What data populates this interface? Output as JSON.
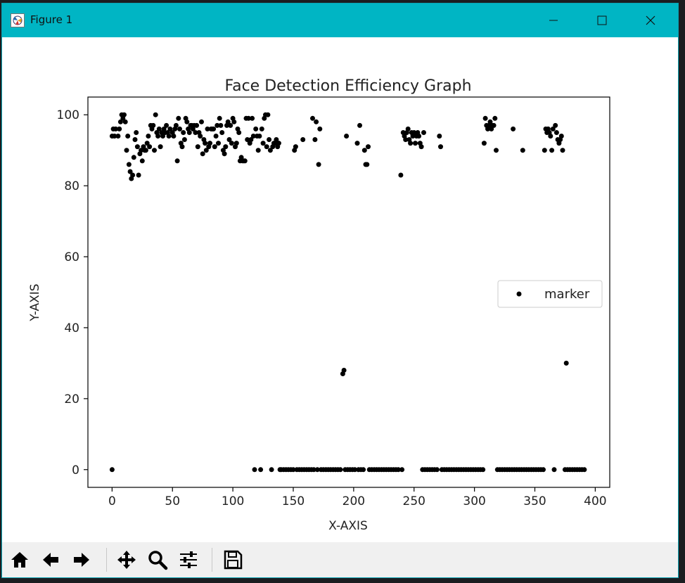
{
  "window": {
    "title": "Figure 1"
  },
  "icons": {
    "app": "matplotlib-figure-icon",
    "minimize": "minimize-icon",
    "maximize": "maximize-icon",
    "close": "close-icon"
  },
  "toolbar": {
    "buttons": [
      {
        "name": "home-button",
        "icon": "home-icon"
      },
      {
        "name": "back-button",
        "icon": "arrow-left-icon"
      },
      {
        "name": "forward-button",
        "icon": "arrow-right-icon"
      },
      {
        "name": "pan-button",
        "icon": "move-icon"
      },
      {
        "name": "zoom-button",
        "icon": "magnifier-icon"
      },
      {
        "name": "configure-subplots-button",
        "icon": "sliders-icon"
      },
      {
        "name": "save-button",
        "icon": "floppy-disk-icon"
      }
    ]
  },
  "chart_data": {
    "type": "scatter",
    "title": "Face Detection Efficiency Graph",
    "xlabel": "X-AXIS",
    "ylabel": "Y-AXIS",
    "xlim": [
      -20,
      412
    ],
    "ylim": [
      -5,
      105
    ],
    "xticks": [
      0,
      50,
      100,
      150,
      200,
      250,
      300,
      350,
      400
    ],
    "yticks": [
      0,
      20,
      40,
      60,
      80,
      100
    ],
    "grid": false,
    "legend": {
      "position": "center-right",
      "entries": [
        "marker"
      ]
    },
    "marker_color": "#000000",
    "series": [
      {
        "name": "marker",
        "points": [
          [
            0,
            0
          ],
          [
            0,
            94
          ],
          [
            1,
            96
          ],
          [
            2,
            94
          ],
          [
            3,
            96
          ],
          [
            5,
            94
          ],
          [
            6,
            96
          ],
          [
            7,
            98
          ],
          [
            8,
            100
          ],
          [
            9,
            99
          ],
          [
            10,
            100
          ],
          [
            11,
            98
          ],
          [
            12,
            90
          ],
          [
            13,
            94
          ],
          [
            14,
            86
          ],
          [
            15,
            84
          ],
          [
            16,
            82
          ],
          [
            17,
            83
          ],
          [
            18,
            88
          ],
          [
            19,
            93
          ],
          [
            20,
            95
          ],
          [
            21,
            91
          ],
          [
            22,
            83
          ],
          [
            23,
            89
          ],
          [
            24,
            90
          ],
          [
            25,
            87
          ],
          [
            26,
            91
          ],
          [
            27,
            90
          ],
          [
            28,
            90
          ],
          [
            29,
            92
          ],
          [
            30,
            94
          ],
          [
            31,
            91
          ],
          [
            32,
            97
          ],
          [
            33,
            96
          ],
          [
            34,
            97
          ],
          [
            35,
            90
          ],
          [
            36,
            100
          ],
          [
            37,
            95
          ],
          [
            38,
            94
          ],
          [
            39,
            96
          ],
          [
            40,
            91
          ],
          [
            41,
            95
          ],
          [
            42,
            94
          ],
          [
            43,
            96
          ],
          [
            44,
            95
          ],
          [
            45,
            97
          ],
          [
            46,
            95
          ],
          [
            47,
            94
          ],
          [
            48,
            96
          ],
          [
            50,
            95
          ],
          [
            51,
            94
          ],
          [
            52,
            96
          ],
          [
            53,
            97
          ],
          [
            54,
            87
          ],
          [
            55,
            99
          ],
          [
            56,
            96
          ],
          [
            57,
            92
          ],
          [
            58,
            91
          ],
          [
            59,
            95
          ],
          [
            60,
            93
          ],
          [
            61,
            99
          ],
          [
            62,
            98
          ],
          [
            63,
            96
          ],
          [
            64,
            95
          ],
          [
            65,
            97
          ],
          [
            66,
            97
          ],
          [
            67,
            96
          ],
          [
            68,
            97
          ],
          [
            69,
            95
          ],
          [
            70,
            97
          ],
          [
            71,
            91
          ],
          [
            72,
            95
          ],
          [
            73,
            94
          ],
          [
            74,
            98
          ],
          [
            75,
            89
          ],
          [
            76,
            93
          ],
          [
            77,
            92
          ],
          [
            78,
            90
          ],
          [
            79,
            96
          ],
          [
            80,
            91
          ],
          [
            81,
            92
          ],
          [
            82,
            96
          ],
          [
            83,
            96
          ],
          [
            84,
            96
          ],
          [
            85,
            91
          ],
          [
            86,
            94
          ],
          [
            87,
            97
          ],
          [
            88,
            92
          ],
          [
            89,
            99
          ],
          [
            90,
            97
          ],
          [
            91,
            95
          ],
          [
            92,
            90
          ],
          [
            93,
            89
          ],
          [
            94,
            91
          ],
          [
            95,
            97
          ],
          [
            96,
            98
          ],
          [
            97,
            93
          ],
          [
            98,
            97
          ],
          [
            99,
            92
          ],
          [
            100,
            99
          ],
          [
            101,
            98
          ],
          [
            102,
            91
          ],
          [
            103,
            92
          ],
          [
            104,
            96
          ],
          [
            105,
            95
          ],
          [
            106,
            87
          ],
          [
            107,
            88
          ],
          [
            108,
            87
          ],
          [
            109,
            87
          ],
          [
            110,
            87
          ],
          [
            111,
            99
          ],
          [
            112,
            93
          ],
          [
            113,
            99
          ],
          [
            114,
            92
          ],
          [
            115,
            93
          ],
          [
            116,
            99
          ],
          [
            117,
            94
          ],
          [
            118,
            0
          ],
          [
            119,
            96
          ],
          [
            120,
            94
          ],
          [
            121,
            90
          ],
          [
            122,
            94
          ],
          [
            123,
            0
          ],
          [
            124,
            96
          ],
          [
            125,
            92
          ],
          [
            126,
            99
          ],
          [
            127,
            100
          ],
          [
            128,
            91
          ],
          [
            129,
            100
          ],
          [
            130,
            93
          ],
          [
            131,
            90
          ],
          [
            132,
            0
          ],
          [
            133,
            91
          ],
          [
            134,
            92
          ],
          [
            135,
            92
          ],
          [
            136,
            93
          ],
          [
            137,
            91
          ],
          [
            138,
            92
          ],
          [
            139,
            0
          ],
          [
            140,
            0
          ],
          [
            142,
            0
          ],
          [
            144,
            0
          ],
          [
            146,
            0
          ],
          [
            148,
            0
          ],
          [
            150,
            0
          ],
          [
            151,
            90
          ],
          [
            152,
            91
          ],
          [
            153,
            0
          ],
          [
            155,
            0
          ],
          [
            157,
            0
          ],
          [
            158,
            93
          ],
          [
            159,
            0
          ],
          [
            161,
            0
          ],
          [
            163,
            0
          ],
          [
            165,
            0
          ],
          [
            166,
            99
          ],
          [
            167,
            0
          ],
          [
            168,
            93
          ],
          [
            169,
            98
          ],
          [
            170,
            0
          ],
          [
            171,
            86
          ],
          [
            172,
            96
          ],
          [
            173,
            0
          ],
          [
            175,
            0
          ],
          [
            177,
            0
          ],
          [
            179,
            0
          ],
          [
            181,
            0
          ],
          [
            183,
            0
          ],
          [
            185,
            0
          ],
          [
            187,
            0
          ],
          [
            189,
            0
          ],
          [
            191,
            27
          ],
          [
            192,
            28
          ],
          [
            193,
            0
          ],
          [
            194,
            94
          ],
          [
            195,
            0
          ],
          [
            197,
            0
          ],
          [
            199,
            0
          ],
          [
            201,
            0
          ],
          [
            203,
            92
          ],
          [
            204,
            0
          ],
          [
            205,
            97
          ],
          [
            206,
            0
          ],
          [
            208,
            0
          ],
          [
            209,
            90
          ],
          [
            210,
            86
          ],
          [
            211,
            86
          ],
          [
            212,
            91
          ],
          [
            213,
            0
          ],
          [
            215,
            0
          ],
          [
            217,
            0
          ],
          [
            219,
            0
          ],
          [
            221,
            0
          ],
          [
            223,
            0
          ],
          [
            225,
            0
          ],
          [
            227,
            0
          ],
          [
            229,
            0
          ],
          [
            231,
            0
          ],
          [
            233,
            0
          ],
          [
            235,
            0
          ],
          [
            237,
            0
          ],
          [
            239,
            83
          ],
          [
            240,
            0
          ],
          [
            241,
            95
          ],
          [
            242,
            94
          ],
          [
            243,
            93
          ],
          [
            244,
            95
          ],
          [
            245,
            96
          ],
          [
            246,
            93
          ],
          [
            247,
            92
          ],
          [
            248,
            95
          ],
          [
            249,
            94
          ],
          [
            250,
            95
          ],
          [
            251,
            92
          ],
          [
            252,
            94
          ],
          [
            253,
            95
          ],
          [
            254,
            94
          ],
          [
            255,
            92
          ],
          [
            256,
            91
          ],
          [
            257,
            0
          ],
          [
            258,
            95
          ],
          [
            259,
            0
          ],
          [
            261,
            0
          ],
          [
            263,
            0
          ],
          [
            265,
            0
          ],
          [
            267,
            0
          ],
          [
            269,
            0
          ],
          [
            271,
            94
          ],
          [
            272,
            91
          ],
          [
            273,
            0
          ],
          [
            275,
            0
          ],
          [
            277,
            0
          ],
          [
            279,
            0
          ],
          [
            281,
            0
          ],
          [
            283,
            0
          ],
          [
            285,
            0
          ],
          [
            287,
            0
          ],
          [
            289,
            0
          ],
          [
            291,
            0
          ],
          [
            293,
            0
          ],
          [
            295,
            0
          ],
          [
            297,
            0
          ],
          [
            299,
            0
          ],
          [
            301,
            0
          ],
          [
            303,
            0
          ],
          [
            305,
            0
          ],
          [
            307,
            0
          ],
          [
            308,
            92
          ],
          [
            309,
            99
          ],
          [
            310,
            97
          ],
          [
            311,
            96
          ],
          [
            312,
            97
          ],
          [
            313,
            98
          ],
          [
            314,
            96
          ],
          [
            315,
            97
          ],
          [
            316,
            97
          ],
          [
            317,
            99
          ],
          [
            318,
            90
          ],
          [
            319,
            0
          ],
          [
            321,
            0
          ],
          [
            323,
            0
          ],
          [
            325,
            0
          ],
          [
            327,
            0
          ],
          [
            329,
            0
          ],
          [
            331,
            0
          ],
          [
            332,
            96
          ],
          [
            333,
            0
          ],
          [
            335,
            0
          ],
          [
            337,
            0
          ],
          [
            339,
            0
          ],
          [
            340,
            90
          ],
          [
            341,
            0
          ],
          [
            343,
            0
          ],
          [
            345,
            0
          ],
          [
            347,
            0
          ],
          [
            349,
            0
          ],
          [
            351,
            0
          ],
          [
            353,
            0
          ],
          [
            355,
            0
          ],
          [
            357,
            0
          ],
          [
            358,
            90
          ],
          [
            359,
            96
          ],
          [
            360,
            95
          ],
          [
            361,
            96
          ],
          [
            362,
            95
          ],
          [
            363,
            94
          ],
          [
            364,
            90
          ],
          [
            365,
            96
          ],
          [
            366,
            0
          ],
          [
            367,
            97
          ],
          [
            368,
            95
          ],
          [
            369,
            93
          ],
          [
            370,
            92
          ],
          [
            371,
            93
          ],
          [
            372,
            94
          ],
          [
            373,
            90
          ],
          [
            375,
            0
          ],
          [
            376,
            30
          ],
          [
            377,
            0
          ],
          [
            379,
            0
          ],
          [
            381,
            0
          ],
          [
            383,
            0
          ],
          [
            385,
            0
          ],
          [
            387,
            0
          ],
          [
            389,
            0
          ],
          [
            391,
            0
          ]
        ]
      }
    ]
  }
}
